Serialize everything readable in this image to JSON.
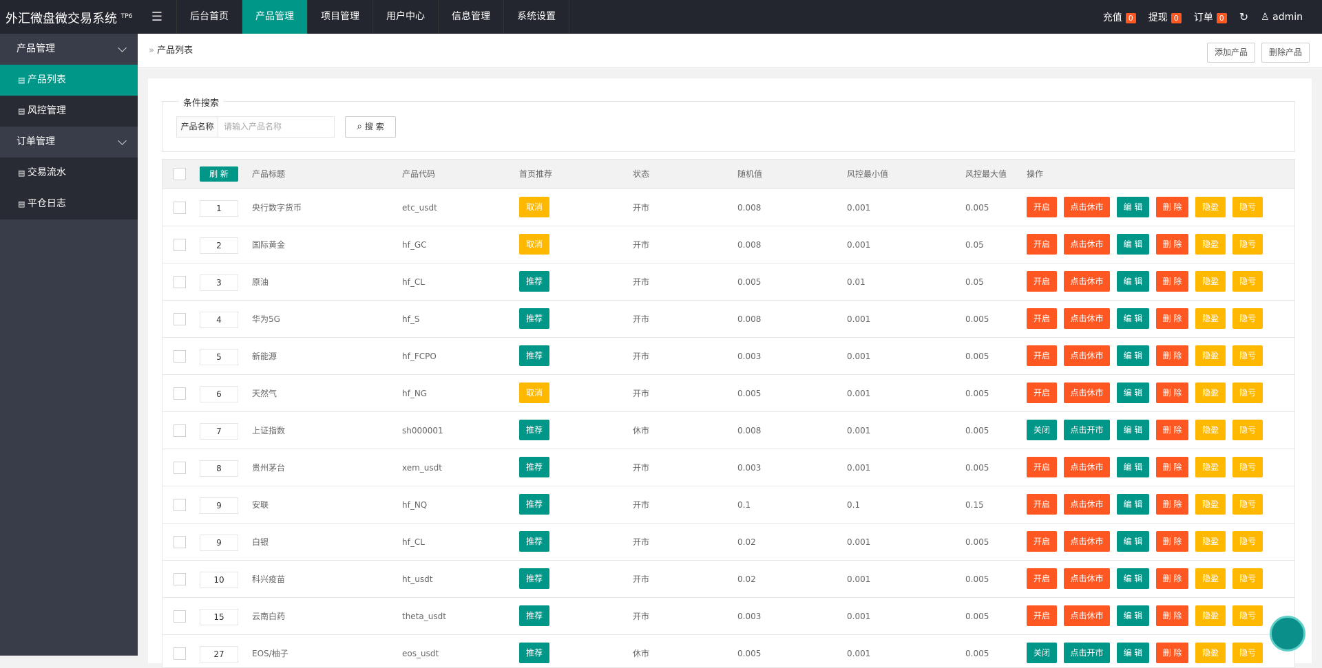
{
  "header": {
    "logo": "外汇微盘微交易系统",
    "logo_sup": "TP6",
    "nav": [
      "后台首页",
      "产品管理",
      "项目管理",
      "用户中心",
      "信息管理",
      "系统设置"
    ],
    "stats": [
      {
        "label": "充值",
        "count": "0"
      },
      {
        "label": "提现",
        "count": "0"
      },
      {
        "label": "订单",
        "count": "0"
      }
    ],
    "user": "admin"
  },
  "sidebar": [
    {
      "label": "产品管理",
      "items": [
        "产品列表",
        "风控管理"
      ]
    },
    {
      "label": "订单管理",
      "items": [
        "交易流水",
        "平仓日志"
      ]
    }
  ],
  "breadcrumb": "产品列表",
  "toolbar": [
    "添加产品",
    "删除产品"
  ],
  "search": {
    "legend": "条件搜索",
    "label": "产品名称",
    "placeholder": "请输入产品名称",
    "button": "搜 索"
  },
  "table": {
    "refresh": "刷 新",
    "headers": [
      "产品标题",
      "产品代码",
      "首页推荐",
      "状态",
      "随机值",
      "风控最小值",
      "风控最大值",
      "操作"
    ],
    "actions": [
      {
        "label": "编 辑",
        "color": "#009688"
      },
      {
        "label": "删 除",
        "color": "#ff5722"
      },
      {
        "label": "隐盈",
        "color": "#ffb800"
      },
      {
        "label": "隐亏",
        "color": "#ffb800"
      }
    ],
    "rows": [
      {
        "sort": "1",
        "title": "央行数字货币",
        "code": "etc_usdt",
        "recommend": {
          "label": "取消",
          "color": "#ffb800"
        },
        "status": "开市",
        "random": "0.008",
        "min": "0.001",
        "max": "0.005",
        "switch": {
          "label": "开启",
          "color": "#ff5722"
        },
        "market": {
          "label": "点击休市",
          "color": "#ff5722"
        }
      },
      {
        "sort": "2",
        "title": "国际黄金",
        "code": "hf_GC",
        "recommend": {
          "label": "取消",
          "color": "#ffb800"
        },
        "status": "开市",
        "random": "0.008",
        "min": "0.001",
        "max": "0.05",
        "switch": {
          "label": "开启",
          "color": "#ff5722"
        },
        "market": {
          "label": "点击休市",
          "color": "#ff5722"
        }
      },
      {
        "sort": "3",
        "title": "原油",
        "code": "hf_CL",
        "recommend": {
          "label": "推荐",
          "color": "#009688"
        },
        "status": "开市",
        "random": "0.005",
        "min": "0.01",
        "max": "0.05",
        "switch": {
          "label": "开启",
          "color": "#ff5722"
        },
        "market": {
          "label": "点击休市",
          "color": "#ff5722"
        }
      },
      {
        "sort": "4",
        "title": "华为5G",
        "code": "hf_S",
        "recommend": {
          "label": "推荐",
          "color": "#009688"
        },
        "status": "开市",
        "random": "0.008",
        "min": "0.001",
        "max": "0.005",
        "switch": {
          "label": "开启",
          "color": "#ff5722"
        },
        "market": {
          "label": "点击休市",
          "color": "#ff5722"
        }
      },
      {
        "sort": "5",
        "title": "新能源",
        "code": "hf_FCPO",
        "recommend": {
          "label": "推荐",
          "color": "#009688"
        },
        "status": "开市",
        "random": "0.003",
        "min": "0.001",
        "max": "0.005",
        "switch": {
          "label": "开启",
          "color": "#ff5722"
        },
        "market": {
          "label": "点击休市",
          "color": "#ff5722"
        }
      },
      {
        "sort": "6",
        "title": "天然气",
        "code": "hf_NG",
        "recommend": {
          "label": "取消",
          "color": "#ffb800"
        },
        "status": "开市",
        "random": "0.005",
        "min": "0.001",
        "max": "0.005",
        "switch": {
          "label": "开启",
          "color": "#ff5722"
        },
        "market": {
          "label": "点击休市",
          "color": "#ff5722"
        }
      },
      {
        "sort": "7",
        "title": "上证指数",
        "code": "sh000001",
        "recommend": {
          "label": "推荐",
          "color": "#009688"
        },
        "status": "休市",
        "random": "0.008",
        "min": "0.001",
        "max": "0.005",
        "switch": {
          "label": "关闭",
          "color": "#009688"
        },
        "market": {
          "label": "点击开市",
          "color": "#009688"
        }
      },
      {
        "sort": "8",
        "title": "贵州茅台",
        "code": "xem_usdt",
        "recommend": {
          "label": "推荐",
          "color": "#009688"
        },
        "status": "开市",
        "random": "0.003",
        "min": "0.001",
        "max": "0.005",
        "switch": {
          "label": "开启",
          "color": "#ff5722"
        },
        "market": {
          "label": "点击休市",
          "color": "#ff5722"
        }
      },
      {
        "sort": "9",
        "title": "安联",
        "code": "hf_NQ",
        "recommend": {
          "label": "推荐",
          "color": "#009688"
        },
        "status": "开市",
        "random": "0.1",
        "min": "0.1",
        "max": "0.15",
        "switch": {
          "label": "开启",
          "color": "#ff5722"
        },
        "market": {
          "label": "点击休市",
          "color": "#ff5722"
        }
      },
      {
        "sort": "9",
        "title": "白银",
        "code": "hf_CL",
        "recommend": {
          "label": "推荐",
          "color": "#009688"
        },
        "status": "开市",
        "random": "0.02",
        "min": "0.001",
        "max": "0.005",
        "switch": {
          "label": "开启",
          "color": "#ff5722"
        },
        "market": {
          "label": "点击休市",
          "color": "#ff5722"
        }
      },
      {
        "sort": "10",
        "title": "科兴疫苗",
        "code": "ht_usdt",
        "recommend": {
          "label": "推荐",
          "color": "#009688"
        },
        "status": "开市",
        "random": "0.02",
        "min": "0.001",
        "max": "0.005",
        "switch": {
          "label": "开启",
          "color": "#ff5722"
        },
        "market": {
          "label": "点击休市",
          "color": "#ff5722"
        }
      },
      {
        "sort": "15",
        "title": "云南白药",
        "code": "theta_usdt",
        "recommend": {
          "label": "推荐",
          "color": "#009688"
        },
        "status": "开市",
        "random": "0.003",
        "min": "0.001",
        "max": "0.005",
        "switch": {
          "label": "开启",
          "color": "#ff5722"
        },
        "market": {
          "label": "点击休市",
          "color": "#ff5722"
        }
      },
      {
        "sort": "27",
        "title": "EOS/柚子",
        "code": "eos_usdt",
        "recommend": {
          "label": "推荐",
          "color": "#009688"
        },
        "status": "休市",
        "random": "0.005",
        "min": "0.001",
        "max": "0.005",
        "switch": {
          "label": "关闭",
          "color": "#009688"
        },
        "market": {
          "label": "点击开市",
          "color": "#009688"
        }
      }
    ]
  }
}
